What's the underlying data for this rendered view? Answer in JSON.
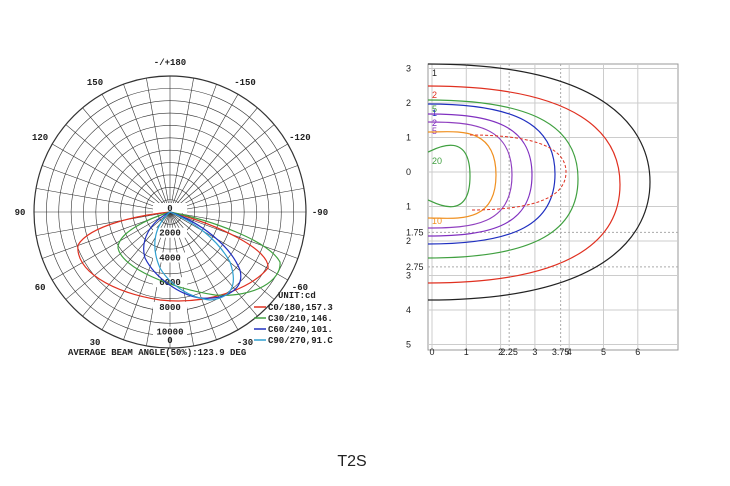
{
  "polar": {
    "angle_labels": [
      "-/+180",
      "-150",
      "150",
      "-120",
      "120",
      "-90",
      "90",
      "-60",
      "60",
      "-30",
      "30",
      "0"
    ],
    "radial_labels": [
      0,
      2000,
      4000,
      6000,
      8000,
      10000
    ],
    "unit": "UNIT:cd",
    "legend": [
      {
        "name": "C0/180,157.3",
        "color": "#e03020"
      },
      {
        "name": "C30/210,146.",
        "color": "#40a040"
      },
      {
        "name": "C60/240,101.",
        "color": "#2030c0"
      },
      {
        "name": "C90/270,91.C",
        "color": "#30a0d0"
      }
    ],
    "caption": "AVERAGE BEAM ANGLE(50%):123.9 DEG"
  },
  "isolux": {
    "xticks": [
      0,
      1,
      2,
      2.25,
      3,
      3.75,
      4,
      5,
      6
    ],
    "yticks": [
      {
        "value": 3,
        "label": "3"
      },
      {
        "value": 2,
        "label": "2"
      },
      {
        "value": 1,
        "label": "1"
      },
      {
        "value": 0,
        "label": "0"
      },
      {
        "value": -1,
        "label": "1"
      },
      {
        "value": -1.75,
        "label": "1.75"
      },
      {
        "value": -2,
        "label": "2"
      },
      {
        "value": -2.75,
        "label": "2.75"
      },
      {
        "value": -3,
        "label": "3"
      },
      {
        "value": -4,
        "label": "4"
      },
      {
        "value": -5,
        "label": "5"
      }
    ],
    "levels": [
      {
        "label": "1",
        "color": "#222222"
      },
      {
        "label": "2",
        "color": "#e03020"
      },
      {
        "label": "5",
        "color": "#40a040"
      },
      {
        "label": "1",
        "color": "#2030c0"
      },
      {
        "label": "2",
        "color": "#8030c0"
      },
      {
        "label": "5",
        "color": "#9040c0"
      },
      {
        "label": "20",
        "color": "#40a040"
      },
      {
        "label": "10",
        "color": "#f09020"
      }
    ]
  },
  "caption": "T2S"
}
